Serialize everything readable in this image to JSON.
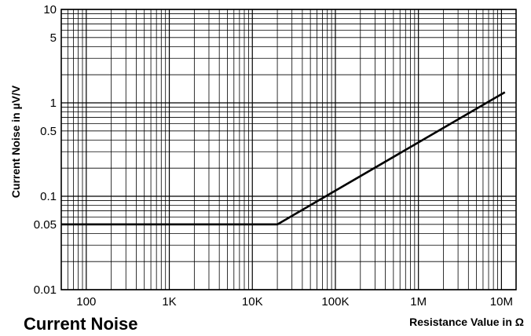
{
  "chart_data": {
    "type": "line",
    "title": "Current Noise",
    "xlabel": "Resistance Value in Ω",
    "ylabel": "Current Noise in µV/V",
    "x_scale": "log",
    "y_scale": "log",
    "xlim": [
      50,
      15000000
    ],
    "ylim": [
      0.01,
      10
    ],
    "grid": true,
    "x_ticks": [
      {
        "value": 100,
        "label": "100"
      },
      {
        "value": 1000,
        "label": "1K"
      },
      {
        "value": 10000,
        "label": "10K"
      },
      {
        "value": 100000,
        "label": "100K"
      },
      {
        "value": 1000000,
        "label": "1M"
      },
      {
        "value": 10000000,
        "label": "10M"
      }
    ],
    "y_ticks": [
      {
        "value": 0.01,
        "label": "0.01"
      },
      {
        "value": 0.05,
        "label": "0.05"
      },
      {
        "value": 0.1,
        "label": "0.1"
      },
      {
        "value": 0.5,
        "label": "0.5"
      },
      {
        "value": 1,
        "label": "1"
      },
      {
        "value": 5,
        "label": "5"
      },
      {
        "value": 10,
        "label": "10"
      }
    ],
    "series": [
      {
        "x": [
          50,
          20000,
          11000000
        ],
        "y": [
          0.05,
          0.05,
          1.3
        ]
      }
    ],
    "line_color": "#000000"
  }
}
